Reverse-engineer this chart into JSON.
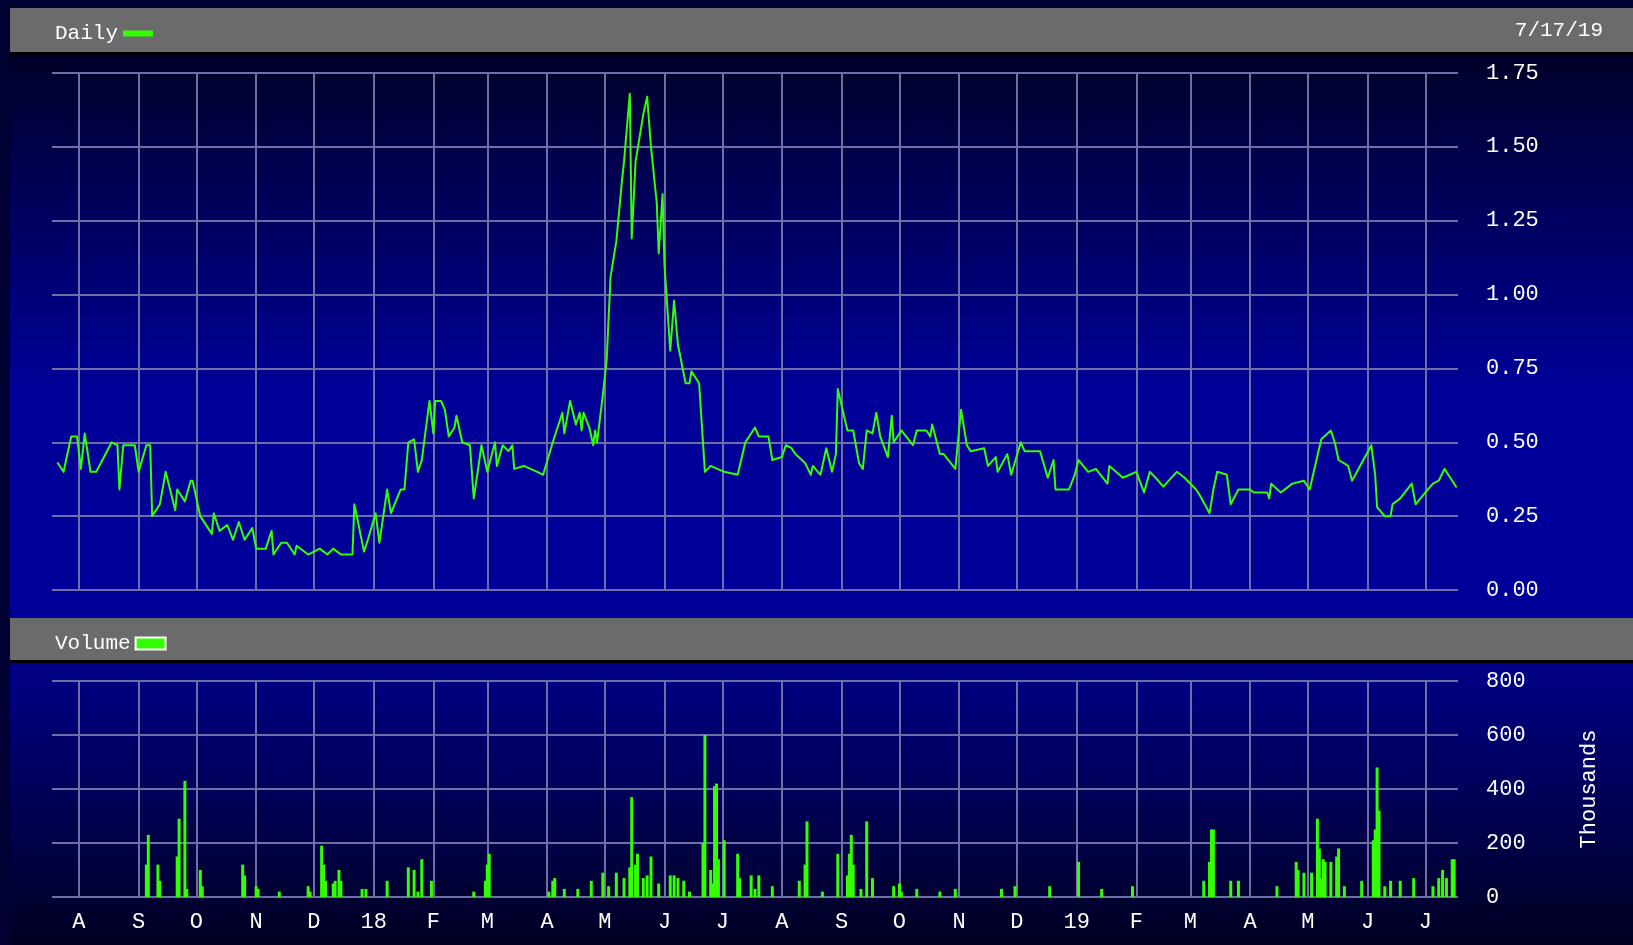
{
  "chart_data": [
    {
      "type": "line",
      "legend": "top left",
      "grid": true,
      "tick_labels": "y",
      "marker": "none",
      "line_style": "solid",
      "annotations": [
        "7/17/19"
      ],
      "xlim": [
        "2017-07-18",
        "2019-07-18"
      ],
      "xticks": [
        {
          "value": "2017-08-01",
          "label": null
        },
        {
          "value": "2017-09-01",
          "label": null
        },
        {
          "value": "2017-10-01",
          "label": null
        },
        {
          "value": "2017-11-01",
          "label": null
        },
        {
          "value": "2017-12-01",
          "label": null
        },
        {
          "value": "2018-01-01",
          "label": null
        },
        {
          "value": "2018-02-01",
          "label": null
        },
        {
          "value": "2018-03-01",
          "label": null
        },
        {
          "value": "2018-04-01",
          "label": null
        },
        {
          "value": "2018-05-01",
          "label": null
        },
        {
          "value": "2018-06-01",
          "label": null
        },
        {
          "value": "2018-07-01",
          "label": null
        },
        {
          "value": "2018-08-01",
          "label": null
        },
        {
          "value": "2018-09-01",
          "label": null
        },
        {
          "value": "2018-10-01",
          "label": null
        },
        {
          "value": "2018-11-01",
          "label": null
        },
        {
          "value": "2018-12-01",
          "label": null
        },
        {
          "value": "2019-01-01",
          "label": null
        },
        {
          "value": "2019-02-01",
          "label": null
        },
        {
          "value": "2019-03-01",
          "label": null
        },
        {
          "value": "2019-04-01",
          "label": null
        },
        {
          "value": "2019-05-01",
          "label": null
        },
        {
          "value": "2019-06-01",
          "label": null
        },
        {
          "value": "2019-07-01",
          "label": null
        }
      ],
      "ylim": [
        0,
        1.75
      ],
      "yticks": [
        {
          "value": 0,
          "label": "0.00"
        },
        {
          "value": 0.25,
          "label": "0.25"
        },
        {
          "value": 0.5,
          "label": "0.50"
        },
        {
          "value": 0.75,
          "label": "0.75"
        },
        {
          "value": 1,
          "label": "1.00"
        },
        {
          "value": 1.25,
          "label": "1.25"
        },
        {
          "value": 1.5,
          "label": "1.50"
        },
        {
          "value": 1.75,
          "label": "1.75"
        }
      ],
      "x": [
        "2017-07-21",
        "2017-07-24",
        "2017-07-28",
        "2017-07-31",
        "2017-08-02",
        "2017-08-04",
        "2017-08-07",
        "2017-08-10",
        "2017-08-18",
        "2017-08-21",
        "2017-08-22",
        "2017-08-24",
        "2017-08-30",
        "2017-09-01",
        "2017-09-05",
        "2017-09-07",
        "2017-09-08",
        "2017-09-12",
        "2017-09-15",
        "2017-09-20",
        "2017-09-21",
        "2017-09-25",
        "2017-09-28",
        "2017-09-29",
        "2017-10-03",
        "2017-10-09",
        "2017-10-10",
        "2017-10-13",
        "2017-10-17",
        "2017-10-20",
        "2017-10-23",
        "2017-10-26",
        "2017-10-30",
        "2017-11-01",
        "2017-11-06",
        "2017-11-09",
        "2017-11-10",
        "2017-11-14",
        "2017-11-17",
        "2017-11-21",
        "2017-11-22",
        "2017-11-28",
        "2017-12-04",
        "2017-12-08",
        "2017-12-11",
        "2017-12-15",
        "2017-12-21",
        "2017-12-22",
        "2017-12-27",
        "2017-12-29",
        "2018-01-02",
        "2018-01-04",
        "2018-01-08",
        "2018-01-10",
        "2018-01-15",
        "2018-01-17",
        "2018-01-19",
        "2018-01-22",
        "2018-01-24",
        "2018-01-26",
        "2018-01-30",
        "2018-02-01",
        "2018-02-02",
        "2018-02-05",
        "2018-02-07",
        "2018-02-09",
        "2018-02-12",
        "2018-02-13",
        "2018-02-16",
        "2018-02-20",
        "2018-02-22",
        "2018-02-26",
        "2018-03-01",
        "2018-03-05",
        "2018-03-06",
        "2018-03-09",
        "2018-03-12",
        "2018-03-14",
        "2018-03-15",
        "2018-03-20",
        "2018-03-27",
        "2018-03-30",
        "2018-04-04",
        "2018-04-09",
        "2018-04-10",
        "2018-04-13",
        "2018-04-16",
        "2018-04-18",
        "2018-04-19",
        "2018-04-20",
        "2018-04-23",
        "2018-04-25",
        "2018-04-26",
        "2018-04-27",
        "2018-04-30",
        "2018-05-02",
        "2018-05-04",
        "2018-05-07",
        "2018-05-10",
        "2018-05-11",
        "2018-05-14",
        "2018-05-15",
        "2018-05-17",
        "2018-05-21",
        "2018-05-23",
        "2018-05-25",
        "2018-05-28",
        "2018-05-29",
        "2018-05-31",
        "2018-06-01",
        "2018-06-04",
        "2018-06-06",
        "2018-06-08",
        "2018-06-12",
        "2018-06-14",
        "2018-06-15",
        "2018-06-19",
        "2018-06-22",
        "2018-06-25",
        "2018-07-02",
        "2018-07-09",
        "2018-07-13",
        "2018-07-18",
        "2018-07-20",
        "2018-07-25",
        "2018-07-27",
        "2018-08-01",
        "2018-08-03",
        "2018-08-06",
        "2018-08-08",
        "2018-08-13",
        "2018-08-16",
        "2018-08-17",
        "2018-08-21",
        "2018-08-24",
        "2018-08-27",
        "2018-08-29",
        "2018-08-30",
        "2018-09-04",
        "2018-09-07",
        "2018-09-10",
        "2018-09-12",
        "2018-09-14",
        "2018-09-17",
        "2018-09-19",
        "2018-09-21",
        "2018-09-25",
        "2018-09-27",
        "2018-09-28",
        "2018-10-02",
        "2018-10-08",
        "2018-10-10",
        "2018-10-15",
        "2018-10-17",
        "2018-10-18",
        "2018-10-22",
        "2018-10-24",
        "2018-10-30",
        "2018-11-02",
        "2018-11-05",
        "2018-11-07",
        "2018-11-14",
        "2018-11-16",
        "2018-11-20",
        "2018-11-21",
        "2018-11-26",
        "2018-11-28",
        "2018-12-03",
        "2018-12-05",
        "2018-12-13",
        "2018-12-17",
        "2018-12-20",
        "2018-12-21",
        "2018-12-28",
        "2018-12-31",
        "2019-01-02",
        "2019-01-07",
        "2019-01-11",
        "2019-01-17",
        "2019-01-18",
        "2019-01-25",
        "2019-02-01",
        "2019-02-05",
        "2019-02-08",
        "2019-02-11",
        "2019-02-15",
        "2019-02-22",
        "2019-02-26",
        "2019-03-04",
        "2019-03-06",
        "2019-03-11",
        "2019-03-13",
        "2019-03-15",
        "2019-03-20",
        "2019-03-22",
        "2019-03-26",
        "2019-04-01",
        "2019-04-03",
        "2019-04-10",
        "2019-04-11",
        "2019-04-12",
        "2019-04-17",
        "2019-04-23",
        "2019-04-29",
        "2019-05-02",
        "2019-05-08",
        "2019-05-13",
        "2019-05-15",
        "2019-05-17",
        "2019-05-22",
        "2019-05-24",
        "2019-05-29",
        "2019-06-03",
        "2019-06-05",
        "2019-06-06",
        "2019-06-10",
        "2019-06-13",
        "2019-06-14",
        "2019-06-18",
        "2019-06-24",
        "2019-06-26",
        "2019-07-01",
        "2019-07-05",
        "2019-07-08",
        "2019-07-11",
        "2019-07-15",
        "2019-07-17"
      ],
      "series": [
        {
          "name": "Daily",
          "color": "#33ff00",
          "values": [
            0.43,
            0.4,
            0.52,
            0.52,
            0.41,
            0.53,
            0.4,
            0.4,
            0.5,
            0.49,
            0.34,
            0.49,
            0.49,
            0.4,
            0.49,
            0.49,
            0.25,
            0.29,
            0.4,
            0.27,
            0.34,
            0.3,
            0.37,
            0.37,
            0.25,
            0.19,
            0.26,
            0.2,
            0.22,
            0.17,
            0.23,
            0.17,
            0.21,
            0.14,
            0.14,
            0.2,
            0.12,
            0.16,
            0.16,
            0.12,
            0.15,
            0.12,
            0.14,
            0.12,
            0.14,
            0.12,
            0.12,
            0.29,
            0.13,
            0.17,
            0.26,
            0.16,
            0.34,
            0.26,
            0.34,
            0.34,
            0.5,
            0.51,
            0.4,
            0.44,
            0.64,
            0.53,
            0.64,
            0.64,
            0.61,
            0.52,
            0.55,
            0.59,
            0.5,
            0.49,
            0.31,
            0.49,
            0.4,
            0.5,
            0.42,
            0.49,
            0.47,
            0.49,
            0.41,
            0.42,
            0.4,
            0.39,
            0.5,
            0.6,
            0.53,
            0.64,
            0.56,
            0.6,
            0.54,
            0.6,
            0.55,
            0.49,
            0.54,
            0.5,
            0.66,
            0.78,
            1.06,
            1.18,
            1.39,
            1.45,
            1.68,
            1.19,
            1.45,
            1.61,
            1.67,
            1.5,
            1.31,
            1.14,
            1.34,
            1.1,
            0.81,
            0.98,
            0.83,
            0.7,
            0.7,
            0.74,
            0.7,
            0.4,
            0.42,
            0.4,
            0.39,
            0.5,
            0.55,
            0.52,
            0.52,
            0.44,
            0.45,
            0.49,
            0.48,
            0.46,
            0.43,
            0.39,
            0.42,
            0.39,
            0.48,
            0.4,
            0.46,
            0.68,
            0.54,
            0.54,
            0.43,
            0.41,
            0.54,
            0.53,
            0.6,
            0.52,
            0.45,
            0.59,
            0.5,
            0.54,
            0.49,
            0.54,
            0.54,
            0.52,
            0.56,
            0.46,
            0.46,
            0.41,
            0.61,
            0.49,
            0.47,
            0.48,
            0.42,
            0.45,
            0.4,
            0.46,
            0.39,
            0.5,
            0.47,
            0.47,
            0.38,
            0.44,
            0.34,
            0.34,
            0.39,
            0.44,
            0.4,
            0.41,
            0.36,
            0.42,
            0.38,
            0.4,
            0.33,
            0.4,
            0.38,
            0.35,
            0.4,
            0.38,
            0.34,
            0.32,
            0.26,
            0.34,
            0.4,
            0.39,
            0.29,
            0.34,
            0.34,
            0.33,
            0.33,
            0.31,
            0.36,
            0.33,
            0.36,
            0.37,
            0.34,
            0.51,
            0.54,
            0.5,
            0.44,
            0.42,
            0.37,
            0.43,
            0.49,
            0.39,
            0.28,
            0.25,
            0.25,
            0.29,
            0.31,
            0.36,
            0.29,
            0.33,
            0.36,
            0.37,
            0.41,
            0.37,
            0.35
          ]
        }
      ]
    },
    {
      "type": "bar",
      "legend": "top left",
      "grid": true,
      "ylabel": "Thousands",
      "xlim": [
        "2017-07-18",
        "2019-07-18"
      ],
      "xticks": [
        {
          "value": "2017-08-01",
          "label": "A"
        },
        {
          "value": "2017-09-01",
          "label": "S"
        },
        {
          "value": "2017-10-01",
          "label": "O"
        },
        {
          "value": "2017-11-01",
          "label": "N"
        },
        {
          "value": "2017-12-01",
          "label": "D"
        },
        {
          "value": "2018-01-01",
          "label": "18"
        },
        {
          "value": "2018-02-01",
          "label": "F"
        },
        {
          "value": "2018-03-01",
          "label": "M"
        },
        {
          "value": "2018-04-01",
          "label": "A"
        },
        {
          "value": "2018-05-01",
          "label": "M"
        },
        {
          "value": "2018-06-01",
          "label": "J"
        },
        {
          "value": "2018-07-01",
          "label": "J"
        },
        {
          "value": "2018-08-01",
          "label": "A"
        },
        {
          "value": "2018-09-01",
          "label": "S"
        },
        {
          "value": "2018-10-01",
          "label": "O"
        },
        {
          "value": "2018-11-01",
          "label": "N"
        },
        {
          "value": "2018-12-01",
          "label": "D"
        },
        {
          "value": "2019-01-01",
          "label": "19"
        },
        {
          "value": "2019-02-01",
          "label": "F"
        },
        {
          "value": "2019-03-01",
          "label": "M"
        },
        {
          "value": "2019-04-01",
          "label": "A"
        },
        {
          "value": "2019-05-01",
          "label": "M"
        },
        {
          "value": "2019-06-01",
          "label": "J"
        },
        {
          "value": "2019-07-01",
          "label": "J"
        }
      ],
      "ylim": [
        0,
        800
      ],
      "yticks": [
        0,
        200,
        400,
        600,
        800
      ],
      "x": [
        "2017-09-05",
        "2017-09-06",
        "2017-09-11",
        "2017-09-12",
        "2017-09-21",
        "2017-09-22",
        "2017-09-25",
        "2017-09-26",
        "2017-10-03",
        "2017-10-04",
        "2017-10-25",
        "2017-10-26",
        "2017-11-01",
        "2017-11-02",
        "2017-11-13",
        "2017-11-28",
        "2017-11-29",
        "2017-12-05",
        "2017-12-06",
        "2017-12-07",
        "2017-12-11",
        "2017-12-12",
        "2017-12-14",
        "2017-12-15",
        "2017-12-26",
        "2017-12-28",
        "2018-01-08",
        "2018-01-19",
        "2018-01-22",
        "2018-01-24",
        "2018-01-26",
        "2018-01-31",
        "2018-02-22",
        "2018-02-28",
        "2018-03-01",
        "2018-03-02",
        "2018-04-02",
        "2018-04-04",
        "2018-04-05",
        "2018-04-10",
        "2018-04-17",
        "2018-04-24",
        "2018-04-30",
        "2018-05-03",
        "2018-05-07",
        "2018-05-11",
        "2018-05-14",
        "2018-05-15",
        "2018-05-17",
        "2018-05-18",
        "2018-05-21",
        "2018-05-23",
        "2018-05-25",
        "2018-05-29",
        "2018-06-04",
        "2018-06-06",
        "2018-06-08",
        "2018-06-11",
        "2018-06-14",
        "2018-06-21",
        "2018-06-22",
        "2018-06-25",
        "2018-06-26",
        "2018-06-27",
        "2018-06-28",
        "2018-06-29",
        "2018-07-02",
        "2018-07-09",
        "2018-07-10",
        "2018-07-16",
        "2018-07-18",
        "2018-07-20",
        "2018-07-27",
        "2018-08-10",
        "2018-08-13",
        "2018-08-14",
        "2018-08-22",
        "2018-08-30",
        "2018-09-04",
        "2018-09-05",
        "2018-09-06",
        "2018-09-07",
        "2018-09-11",
        "2018-09-14",
        "2018-09-17",
        "2018-09-28",
        "2018-10-01",
        "2018-10-02",
        "2018-10-10",
        "2018-10-22",
        "2018-10-30",
        "2018-11-23",
        "2018-11-30",
        "2018-12-18",
        "2019-01-02",
        "2019-01-14",
        "2019-01-30",
        "2019-03-08",
        "2019-03-11",
        "2019-03-12",
        "2019-03-13",
        "2019-03-22",
        "2019-03-26",
        "2019-04-15",
        "2019-04-25",
        "2019-04-26",
        "2019-04-29",
        "2019-05-03",
        "2019-05-06",
        "2019-05-07",
        "2019-05-08",
        "2019-05-09",
        "2019-05-10",
        "2019-05-13",
        "2019-05-16",
        "2019-05-17",
        "2019-05-20",
        "2019-05-29",
        "2019-06-04",
        "2019-06-05",
        "2019-06-06",
        "2019-06-07",
        "2019-06-10",
        "2019-06-13",
        "2019-06-18",
        "2019-06-25",
        "2019-07-05",
        "2019-07-08",
        "2019-07-10",
        "2019-07-12",
        "2019-07-15",
        "2019-07-16"
      ],
      "series": [
        {
          "name": "Volume",
          "color": "#33ff00",
          "values": [
            120,
            230,
            120,
            60,
            150,
            290,
            430,
            30,
            100,
            40,
            120,
            80,
            40,
            30,
            20,
            40,
            20,
            190,
            120,
            60,
            50,
            60,
            100,
            60,
            30,
            30,
            60,
            110,
            100,
            20,
            140,
            60,
            20,
            60,
            120,
            160,
            20,
            60,
            70,
            30,
            30,
            60,
            90,
            40,
            90,
            70,
            110,
            370,
            120,
            160,
            70,
            80,
            150,
            50,
            80,
            80,
            70,
            60,
            20,
            200,
            600,
            100,
            50,
            410,
            420,
            140,
            210,
            160,
            70,
            80,
            30,
            80,
            40,
            60,
            120,
            280,
            20,
            160,
            80,
            160,
            230,
            120,
            30,
            280,
            70,
            40,
            50,
            20,
            30,
            20,
            30,
            30,
            40,
            40,
            130,
            30,
            40,
            60,
            130,
            250,
            250,
            60,
            60,
            40,
            130,
            100,
            90,
            90,
            290,
            180,
            70,
            140,
            130,
            130,
            150,
            180,
            40,
            60,
            210,
            250,
            480,
            320,
            40,
            60,
            60,
            70,
            40,
            70,
            100,
            70,
            140,
            140
          ]
        }
      ]
    }
  ]
}
